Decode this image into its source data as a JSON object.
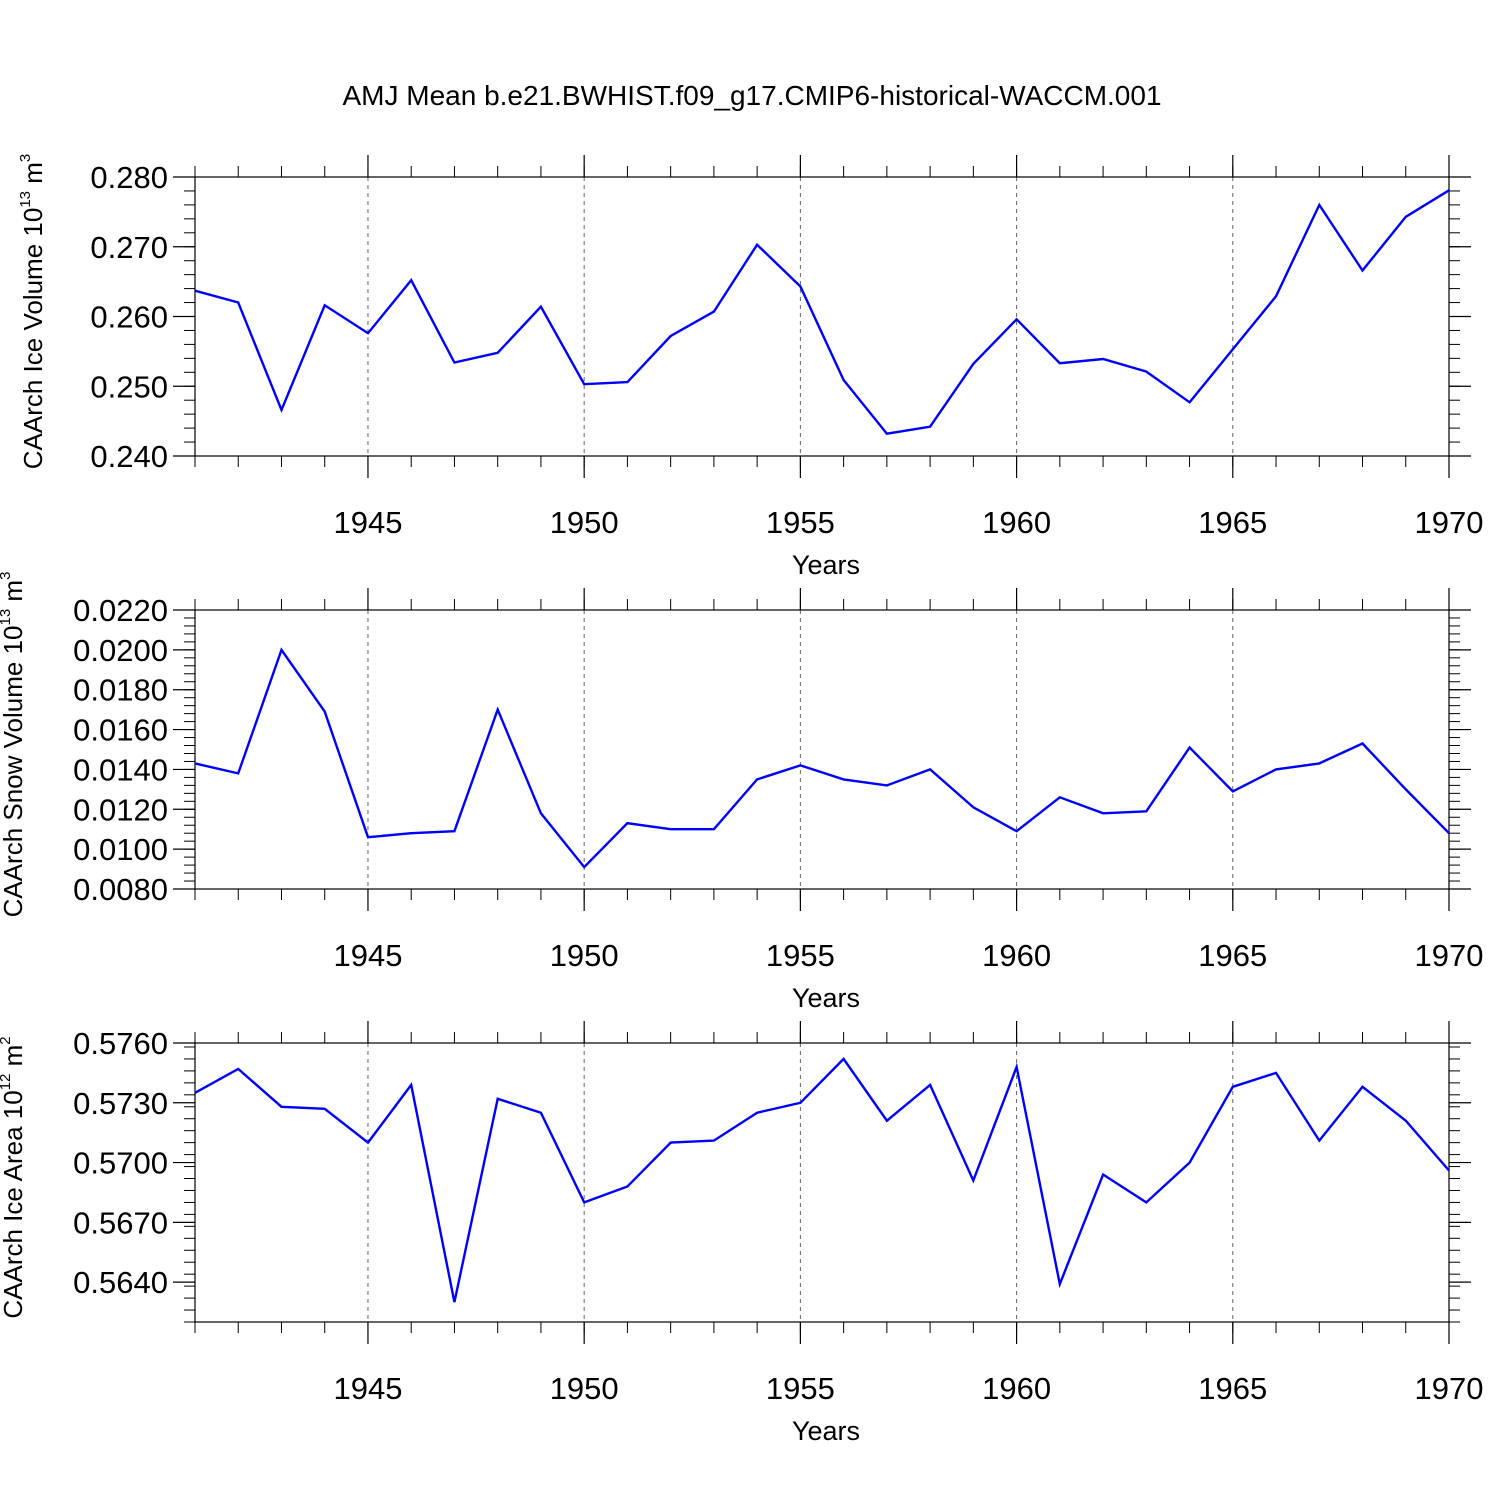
{
  "title": "AMJ Mean b.e21.BWHIST.f09_g17.CMIP6-historical-WACCM.001",
  "colors": {
    "line": "#0000ff",
    "axis": "#000000",
    "grid": "#666666"
  },
  "chart_data": [
    {
      "type": "line",
      "ylabel": {
        "text": "CAArch Ice Volume 10",
        "exp": "13",
        "unit": " m",
        "unit_exp": "3"
      },
      "xlabel": "Years",
      "xlim": [
        1941,
        1970
      ],
      "ylim": [
        0.24,
        0.28
      ],
      "yticks": [
        {
          "value": 0.24,
          "label": "0.240"
        },
        {
          "value": 0.25,
          "label": "0.250"
        },
        {
          "value": 0.26,
          "label": "0.260"
        },
        {
          "value": 0.27,
          "label": "0.270"
        },
        {
          "value": 0.28,
          "label": "0.280"
        }
      ],
      "xticks": [
        {
          "value": 1945,
          "label": "1945"
        },
        {
          "value": 1950,
          "label": "1950"
        },
        {
          "value": 1955,
          "label": "1955"
        },
        {
          "value": 1960,
          "label": "1960"
        },
        {
          "value": 1965,
          "label": "1965"
        },
        {
          "value": 1970,
          "label": "1970"
        }
      ],
      "series": [
        {
          "name": "CAArch Ice Volume",
          "x": [
            1941,
            1942,
            1943,
            1944,
            1945,
            1946,
            1947,
            1948,
            1949,
            1950,
            1951,
            1952,
            1953,
            1954,
            1955,
            1956,
            1957,
            1958,
            1959,
            1960,
            1961,
            1962,
            1963,
            1964,
            1965,
            1966,
            1967,
            1968,
            1969,
            1970
          ],
          "values": [
            0.2637,
            0.262,
            0.2466,
            0.2616,
            0.2576,
            0.2652,
            0.2534,
            0.2548,
            0.2614,
            0.2503,
            0.2506,
            0.2572,
            0.2607,
            0.2703,
            0.2643,
            0.2509,
            0.2432,
            0.2442,
            0.2532,
            0.2596,
            0.2533,
            0.2539,
            0.2521,
            0.2477,
            0.2553,
            0.2629,
            0.276,
            0.2666,
            0.2743,
            0.2781
          ]
        }
      ]
    },
    {
      "type": "line",
      "ylabel": {
        "text": "CAArch Snow Volume 10",
        "exp": "13",
        "unit": " m",
        "unit_exp": "3"
      },
      "xlabel": "Years",
      "xlim": [
        1941,
        1970
      ],
      "ylim": [
        0.008,
        0.022
      ],
      "yticks": [
        {
          "value": 0.008,
          "label": "0.0080"
        },
        {
          "value": 0.01,
          "label": "0.0100"
        },
        {
          "value": 0.012,
          "label": "0.0120"
        },
        {
          "value": 0.014,
          "label": "0.0140"
        },
        {
          "value": 0.016,
          "label": "0.0160"
        },
        {
          "value": 0.018,
          "label": "0.0180"
        },
        {
          "value": 0.02,
          "label": "0.0200"
        },
        {
          "value": 0.022,
          "label": "0.0220"
        }
      ],
      "xticks": [
        {
          "value": 1945,
          "label": "1945"
        },
        {
          "value": 1950,
          "label": "1950"
        },
        {
          "value": 1955,
          "label": "1955"
        },
        {
          "value": 1960,
          "label": "1960"
        },
        {
          "value": 1965,
          "label": "1965"
        },
        {
          "value": 1970,
          "label": "1970"
        }
      ],
      "series": [
        {
          "name": "CAArch Snow Volume",
          "x": [
            1941,
            1942,
            1943,
            1944,
            1945,
            1946,
            1947,
            1948,
            1949,
            1950,
            1951,
            1952,
            1953,
            1954,
            1955,
            1956,
            1957,
            1958,
            1959,
            1960,
            1961,
            1962,
            1963,
            1964,
            1965,
            1966,
            1967,
            1968,
            1969,
            1970
          ],
          "values": [
            0.0143,
            0.0138,
            0.02,
            0.0169,
            0.0106,
            0.0108,
            0.0109,
            0.017,
            0.0118,
            0.0091,
            0.0113,
            0.011,
            0.011,
            0.0135,
            0.0142,
            0.0135,
            0.0132,
            0.014,
            0.0121,
            0.0109,
            0.0126,
            0.0118,
            0.0119,
            0.0151,
            0.0129,
            0.014,
            0.0143,
            0.0153,
            0.013,
            0.0108
          ]
        }
      ]
    },
    {
      "type": "line",
      "ylabel": {
        "text": "CAArch Ice Area 10",
        "exp": "12",
        "unit": " m",
        "unit_exp": "2"
      },
      "xlabel": "Years",
      "xlim": [
        1941,
        1970
      ],
      "ylim": [
        0.562,
        0.576
      ],
      "yticks": [
        {
          "value": 0.564,
          "label": "0.5640"
        },
        {
          "value": 0.567,
          "label": "0.5670"
        },
        {
          "value": 0.57,
          "label": "0.5700"
        },
        {
          "value": 0.573,
          "label": "0.5730"
        },
        {
          "value": 0.576,
          "label": "0.5760"
        }
      ],
      "xticks": [
        {
          "value": 1945,
          "label": "1945"
        },
        {
          "value": 1950,
          "label": "1950"
        },
        {
          "value": 1955,
          "label": "1955"
        },
        {
          "value": 1960,
          "label": "1960"
        },
        {
          "value": 1965,
          "label": "1965"
        },
        {
          "value": 1970,
          "label": "1970"
        }
      ],
      "series": [
        {
          "name": "CAArch Ice Area",
          "x": [
            1941,
            1942,
            1943,
            1944,
            1945,
            1946,
            1947,
            1948,
            1949,
            1950,
            1951,
            1952,
            1953,
            1954,
            1955,
            1956,
            1957,
            1958,
            1959,
            1960,
            1961,
            1962,
            1963,
            1964,
            1965,
            1966,
            1967,
            1968,
            1969,
            1970
          ],
          "values": [
            0.5735,
            0.5747,
            0.5728,
            0.5727,
            0.571,
            0.5739,
            0.563,
            0.5732,
            0.5725,
            0.568,
            0.5688,
            0.571,
            0.5711,
            0.5725,
            0.573,
            0.5752,
            0.5721,
            0.5739,
            0.5691,
            0.5748,
            0.5639,
            0.5694,
            0.568,
            0.57,
            0.5738,
            0.5745,
            0.5711,
            0.5738,
            0.5721,
            0.5696
          ]
        }
      ]
    }
  ]
}
